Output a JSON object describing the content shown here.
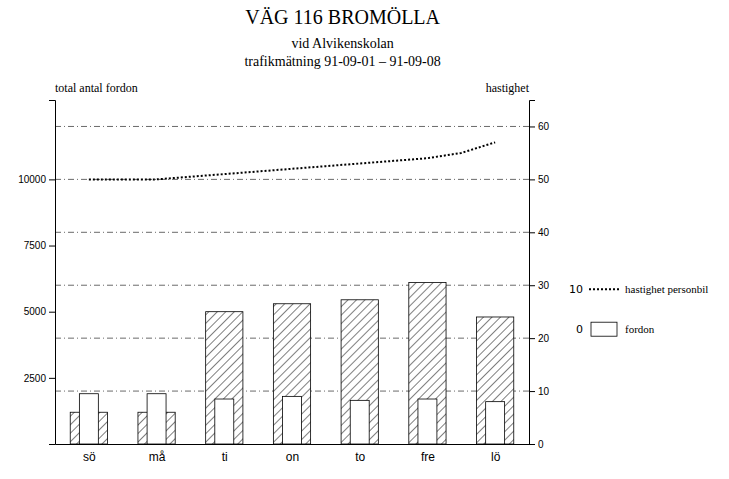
{
  "chart_data": {
    "type": "bar",
    "title": "VÄG 116 BROMÖLLA",
    "subtitle": [
      "vid Alvikenskolan",
      "trafikmätning 91-09-01 – 91-09-08"
    ],
    "y_label": "total antal fordon",
    "y2_label": "hastighet",
    "categories": [
      "sö",
      null,
      "må",
      null,
      "ti",
      null,
      "on",
      null,
      "to",
      null,
      "fre",
      null,
      "lö"
    ],
    "series": [
      {
        "type": "bar",
        "color": "#ffffff",
        "values": [
          1200,
          null,
          1200,
          null,
          5000,
          null,
          5300,
          null,
          5450,
          null,
          6100,
          null,
          4800
        ]
      },
      {
        "name": "fordon",
        "type": "bar",
        "color": "#ffffff",
        "values": [
          1900,
          null,
          1900,
          null,
          1700,
          null,
          1800,
          null,
          1650,
          null,
          1700,
          null,
          1600
        ]
      },
      {
        "name": "hastighet personbil",
        "type": "line",
        "axis": "y2",
        "color": "#000000",
        "line_style": "dotted",
        "values": [
          50,
          50,
          50,
          50.5,
          51,
          51.5,
          52,
          52.5,
          53,
          53.5,
          54,
          55,
          57
        ]
      }
    ],
    "reference_lines": [
      2000,
      4000,
      6000,
      8000,
      10000,
      12000
    ],
    "annotations": [
      "10",
      "0"
    ],
    "ylim": [
      0,
      13000
    ],
    "yticks": [
      2500,
      5000,
      7500,
      10000
    ],
    "y2lim": [
      0,
      65
    ],
    "y2ticks": [
      0,
      10,
      20,
      30,
      40,
      50,
      60
    ],
    "grid": false,
    "legend": "right"
  }
}
